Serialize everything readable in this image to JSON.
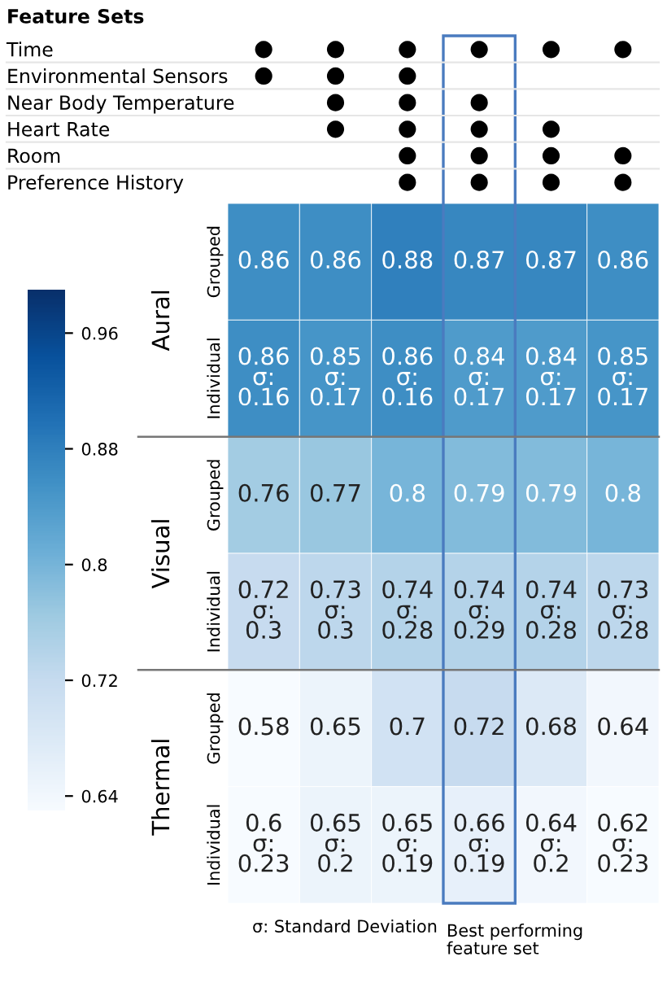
{
  "chart_data": [
    {
      "type": "heatmap",
      "title": "Feature Sets",
      "categories": [
        null,
        null,
        null,
        null,
        null,
        null
      ],
      "y_categories": [
        "Time",
        "Environmental Sensors",
        "Near Body Temperature",
        "Heart Rate",
        "Room",
        "Preference History"
      ],
      "cells": [
        [
          null,
          null,
          null,
          null,
          null,
          null
        ],
        [
          null,
          null,
          null,
          null,
          null,
          null
        ],
        [
          null,
          null,
          null,
          null,
          null,
          null
        ],
        [
          null,
          null,
          null,
          null,
          null,
          null
        ],
        [
          null,
          null,
          null,
          null,
          null,
          null
        ],
        [
          null,
          null,
          null,
          null,
          null,
          null
        ]
      ],
      "cell_labels": [
        [
          "●",
          "●",
          "●",
          "●",
          "●",
          "●"
        ],
        [
          "●",
          "●",
          "●",
          null,
          null,
          null
        ],
        [
          null,
          "●",
          "●",
          "●",
          null,
          null
        ],
        [
          null,
          "●",
          "●",
          "●",
          "●",
          null
        ],
        [
          null,
          null,
          "●",
          "●",
          "●",
          "●"
        ],
        [
          null,
          null,
          "●",
          "●",
          "●",
          "●"
        ]
      ]
    },
    {
      "type": "heatmap",
      "categories": [
        null,
        null,
        null,
        null,
        null,
        null
      ],
      "y_categories": [
        "Grouped",
        "Individual",
        "Grouped",
        "Individual",
        "Grouped",
        "Individual"
      ],
      "cells": [
        [
          0.86,
          0.86,
          0.88,
          0.87,
          0.87,
          0.86
        ],
        [
          0.86,
          0.85,
          0.86,
          0.84,
          0.84,
          0.85
        ],
        [
          0.76,
          0.77,
          0.8,
          0.79,
          0.79,
          0.8
        ],
        [
          0.72,
          0.73,
          0.74,
          0.74,
          0.74,
          0.73
        ],
        [
          0.58,
          0.65,
          0.7,
          0.72,
          0.68,
          0.64
        ],
        [
          0.6,
          0.65,
          0.65,
          0.66,
          0.64,
          0.62
        ]
      ],
      "cell_labels": [
        [
          "0.86",
          "0.86",
          "0.88",
          "0.87",
          "0.87",
          "0.86"
        ],
        [
          "0.86\nσ:\n0.16",
          "0.85\nσ:\n0.17",
          "0.86\nσ:\n0.16",
          "0.84\nσ:\n0.17",
          "0.84\nσ:\n0.17",
          "0.85\nσ:\n0.17"
        ],
        [
          "0.76",
          "0.77",
          "0.8",
          "0.79",
          "0.79",
          "0.8"
        ],
        [
          "0.72\nσ:\n0.3",
          "0.73\nσ:\n0.3",
          "0.74\nσ:\n0.28",
          "0.74\nσ:\n0.29",
          "0.74\nσ:\n0.28",
          "0.73\nσ:\n0.28"
        ],
        [
          "0.58",
          "0.65",
          "0.7",
          "0.72",
          "0.68",
          "0.64"
        ],
        [
          "0.6\nσ:\n0.23",
          "0.65\nσ:\n0.2",
          "0.65\nσ:\n0.19",
          "0.66\nσ:\n0.19",
          "0.64\nσ:\n0.2",
          "0.62\nσ:\n0.23"
        ]
      ],
      "clim": [
        0.63,
        0.99
      ],
      "cticks": [
        0.64,
        0.72,
        0.8,
        0.88,
        0.96
      ],
      "annotations": [
        "Aural",
        "Visual",
        "Thermal",
        "σ: Standard Deviation",
        "Best performing\nfeature set"
      ]
    }
  ]
}
